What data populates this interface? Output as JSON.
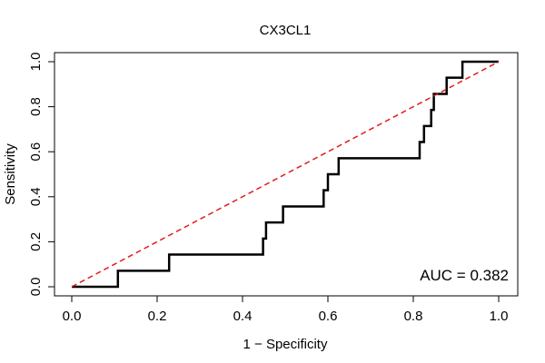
{
  "chart_data": {
    "type": "line",
    "title": "CX3CL1",
    "xlabel": "1 − Specificity",
    "ylabel": "Sensitivity",
    "xlim": [
      0,
      1
    ],
    "ylim": [
      0,
      1
    ],
    "x_ticks": [
      "0.0",
      "0.2",
      "0.4",
      "0.6",
      "0.8",
      "1.0"
    ],
    "y_ticks": [
      "0.0",
      "0.2",
      "0.4",
      "0.6",
      "0.8",
      "1.0"
    ],
    "grid": false,
    "annotation": "AUC = 0.382",
    "colors": {
      "roc": "#000000",
      "reference": "#e41a1c"
    },
    "series": [
      {
        "style": "step",
        "x": [
          0.0,
          0.108,
          0.108,
          0.228,
          0.228,
          0.448,
          0.448,
          0.455,
          0.455,
          0.495,
          0.495,
          0.59,
          0.59,
          0.6,
          0.6,
          0.625,
          0.625,
          0.815,
          0.815,
          0.825,
          0.825,
          0.842,
          0.842,
          0.848,
          0.848,
          0.878,
          0.878,
          0.915,
          0.915,
          1.0
        ],
        "y": [
          0.0,
          0.0,
          0.071,
          0.071,
          0.143,
          0.143,
          0.214,
          0.214,
          0.286,
          0.286,
          0.357,
          0.357,
          0.429,
          0.429,
          0.5,
          0.5,
          0.571,
          0.571,
          0.643,
          0.643,
          0.714,
          0.714,
          0.786,
          0.786,
          0.857,
          0.857,
          0.929,
          0.929,
          1.0,
          1.0
        ]
      },
      {
        "style": "dashed",
        "x": [
          0,
          1
        ],
        "y": [
          0,
          1
        ]
      }
    ]
  }
}
